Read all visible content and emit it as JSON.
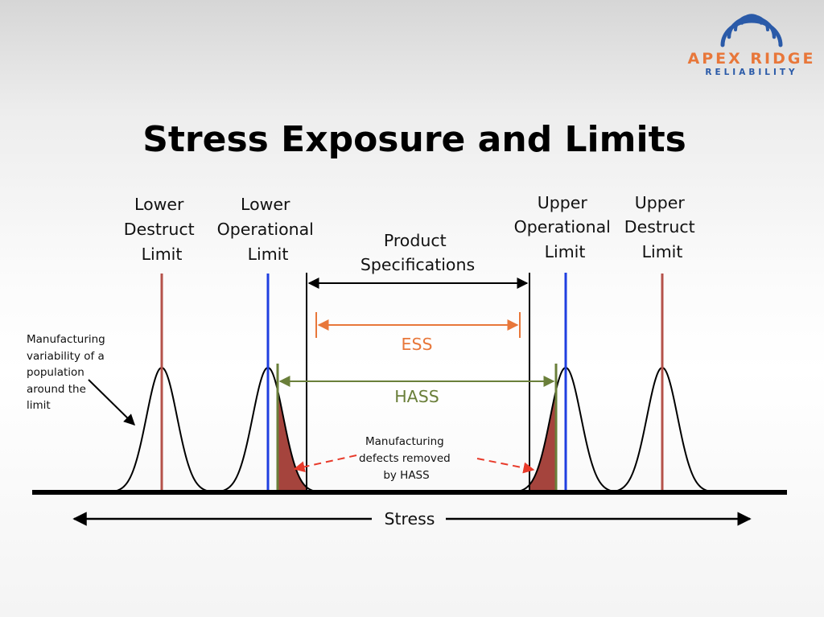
{
  "slide": {
    "title": "Stress Exposure and Limits"
  },
  "logo": {
    "name": "APEX RIDGE",
    "tagline": "RELIABILITY",
    "name_color": "#e8773a",
    "tagline_color": "#2a5aa8",
    "icon": "dome-arcs-icon"
  },
  "limits": {
    "lower_destruct": [
      "Lower",
      "Destruct",
      "Limit"
    ],
    "lower_operational": [
      "Lower",
      "Operational",
      "Limit"
    ],
    "product_specifications": [
      "Product",
      "Specifications"
    ],
    "upper_operational": [
      "Upper",
      "Operational",
      "Limit"
    ],
    "upper_destruct": [
      "Upper",
      "Destruct",
      "Limit"
    ]
  },
  "ranges": {
    "ess": "ESS",
    "hass": "HASS"
  },
  "annotations": {
    "variability": [
      "Manufacturing",
      "variability of a",
      "population",
      "around the",
      "limit"
    ],
    "defects": [
      "Manufacturing",
      "defects removed",
      "by HASS"
    ]
  },
  "axis": {
    "label": "Stress"
  },
  "colors": {
    "destruct_line": "#b5524a",
    "operational_line": "#1f3fe0",
    "ess": "#e8773a",
    "hass": "#6a7f3a",
    "defect_fill": "#a03a33",
    "defect_arrow": "#e83a2a"
  }
}
